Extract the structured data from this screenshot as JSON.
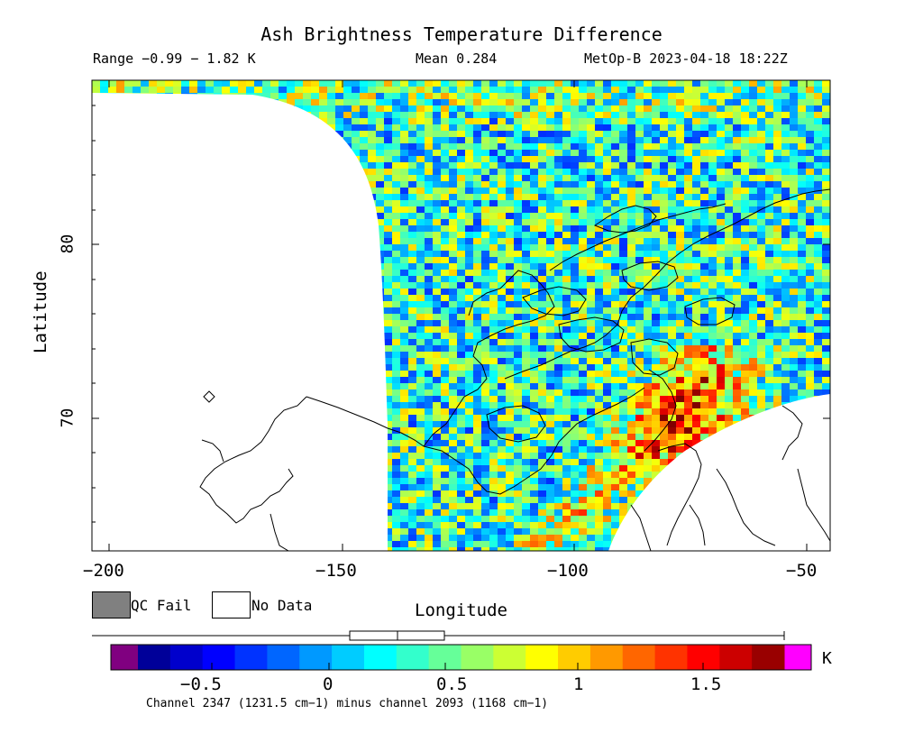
{
  "header": {
    "title": "Ash Brightness Temperature Difference",
    "range": "Range −0.99 − 1.82 K",
    "mean": "Mean 0.284",
    "satellite_time": "MetOp-B 2023-04-18 18:22Z"
  },
  "axes": {
    "ylabel": "Latitude",
    "xlabel": "Longitude",
    "lat_ticks": [
      "80",
      "70"
    ],
    "lon_ticks": [
      "−200",
      "−150",
      "−100",
      "−50"
    ]
  },
  "legend": {
    "qc_fail_label": "QC Fail",
    "no_data_label": "No Data",
    "qc_fail_color": "#808080",
    "no_data_color": "#ffffff"
  },
  "colorbar": {
    "unit": "K",
    "ticks": [
      "−0.5",
      "0",
      "0.5",
      "1",
      "1.5"
    ],
    "under_color": "#800080",
    "over_color": "#ff00ff",
    "channel_note": "Channel 2347 (1231.5 cm−1) minus channel 2093 (1168 cm−1)"
  },
  "chart_data": {
    "type": "heatmap",
    "title": "Ash Brightness Temperature Difference",
    "xlabel": "Longitude",
    "ylabel": "Latitude",
    "xlim": [
      -203,
      -44
    ],
    "ylim": [
      62,
      89
    ],
    "value_range": [
      -0.99,
      1.82
    ],
    "mean": 0.284,
    "colorbar_range": [
      -0.85,
      1.8
    ]
  }
}
